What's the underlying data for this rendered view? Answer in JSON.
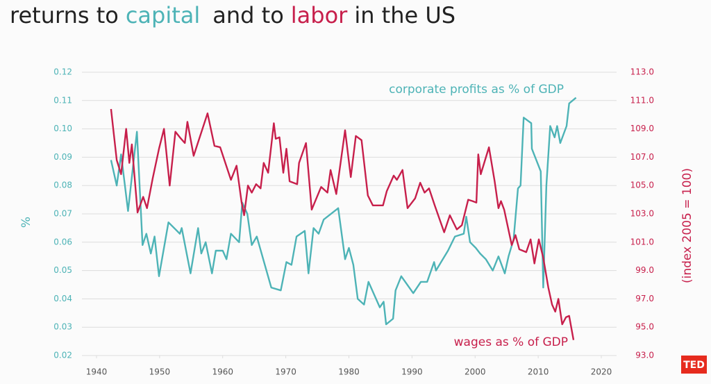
{
  "chart_data": {
    "type": "line",
    "title_parts": [
      "returns to",
      "capital",
      "and to",
      "labor",
      "in the US"
    ],
    "ylabel": "%",
    "y2label": "(index 2005 = 100)",
    "annotations": [
      "corporate profits as % of GDP",
      "wages as % of GDP"
    ],
    "logo": "TED",
    "xlim": [
      1937,
      2023
    ],
    "xticks": [
      1940,
      1950,
      1960,
      1970,
      1980,
      1990,
      2000,
      2010,
      2020
    ],
    "ylim": [
      0.02,
      0.12
    ],
    "yticks": [
      0.02,
      0.03,
      0.04,
      0.05,
      0.06,
      0.07,
      0.08,
      0.09,
      {
        "value": 0.1,
        "label": "0.10"
      },
      0.11,
      0.12
    ],
    "y2lim": [
      93,
      113
    ],
    "y2ticks": [
      {
        "value": 93,
        "label": "93.0"
      },
      {
        "value": 95,
        "label": "95.0"
      },
      {
        "value": 97,
        "label": "97.0"
      },
      {
        "value": 99,
        "label": "99.0"
      },
      {
        "value": 101,
        "label": "101.0"
      },
      {
        "value": 103,
        "label": "103.0"
      },
      {
        "value": 105,
        "label": "105.0"
      },
      {
        "value": 107,
        "label": "107.0"
      },
      {
        "value": 109,
        "label": "109.0"
      },
      {
        "value": 111,
        "label": "111.0"
      },
      {
        "value": 113,
        "label": "113.0"
      }
    ],
    "grid": true,
    "series": [
      {
        "name": "capital",
        "color": "#4db3b6",
        "x": [
          1942.3,
          1943.2,
          1943.9,
          1945.0,
          1946.4,
          1947.3,
          1947.9,
          1948.6,
          1949.2,
          1949.9,
          1951.4,
          1953.2,
          1953.5,
          1954.9,
          1956.1,
          1956.6,
          1957.3,
          1958.3,
          1958.9,
          1960.0,
          1960.6,
          1961.3,
          1962.6,
          1963.1,
          1963.9,
          1964.6,
          1965.4,
          1967.7,
          1969.2,
          1970.1,
          1970.9,
          1971.7,
          1973.0,
          1973.6,
          1974.4,
          1975.2,
          1976.0,
          1978.3,
          1979.4,
          1980.0,
          1980.7,
          1981.4,
          1982.4,
          1983.1,
          1984.9,
          1985.5,
          1985.9,
          1987.0,
          1987.4,
          1988.3,
          1990.2,
          1991.4,
          1992.4,
          1993.5,
          1993.8,
          1995.7,
          1996.8,
          1998.2,
          1998.6,
          1999.2,
          2000.1,
          2000.8,
          2001.7,
          2002.8,
          2003.7,
          2004.7,
          2005.3,
          2006.1,
          2006.8,
          2007.2,
          2007.7,
          2008.9,
          2009.0,
          2010.4,
          2010.8,
          2011.3,
          2011.9,
          2012.6,
          2013.0,
          2013.5,
          2014.5,
          2014.9,
          2016.0
        ],
        "values": [
          0.089,
          0.08,
          0.091,
          0.071,
          0.099,
          0.059,
          0.063,
          0.056,
          0.062,
          0.048,
          0.067,
          0.063,
          0.065,
          0.049,
          0.065,
          0.056,
          0.06,
          0.049,
          0.057,
          0.057,
          0.054,
          0.063,
          0.06,
          0.074,
          0.07,
          0.059,
          0.062,
          0.044,
          0.043,
          0.053,
          0.052,
          0.062,
          0.064,
          0.049,
          0.065,
          0.063,
          0.068,
          0.072,
          0.054,
          0.058,
          0.052,
          0.04,
          0.038,
          0.046,
          0.037,
          0.039,
          0.031,
          0.033,
          0.043,
          0.048,
          0.042,
          0.046,
          0.046,
          0.053,
          0.05,
          0.057,
          0.062,
          0.063,
          0.069,
          0.06,
          0.058,
          0.056,
          0.054,
          0.05,
          0.055,
          0.049,
          0.055,
          0.061,
          0.079,
          0.08,
          0.104,
          0.102,
          0.093,
          0.085,
          0.044,
          0.08,
          0.101,
          0.097,
          0.101,
          0.095,
          0.101,
          0.109,
          0.111
        ]
      },
      {
        "name": "labor",
        "color": "#c71f4b",
        "axis": "y2",
        "x": [
          1942.3,
          1943.2,
          1943.9,
          1944.7,
          1945.2,
          1945.6,
          1946.5,
          1947.4,
          1948.0,
          1948.9,
          1949.9,
          1950.7,
          1951.6,
          1952.5,
          1953.2,
          1954.0,
          1954.4,
          1955.4,
          1957.6,
          1958.7,
          1959.6,
          1961.3,
          1962.2,
          1963.0,
          1963.4,
          1964.0,
          1964.6,
          1965.3,
          1966.0,
          1966.5,
          1967.2,
          1968.1,
          1968.4,
          1969.0,
          1969.6,
          1970.1,
          1970.6,
          1971.8,
          1972.1,
          1973.2,
          1974.1,
          1975.6,
          1976.6,
          1977.1,
          1978.0,
          1979.4,
          1980.3,
          1981.1,
          1982.0,
          1983.0,
          1983.8,
          1985.4,
          1986.0,
          1987.1,
          1987.6,
          1988.5,
          1989.3,
          1990.5,
          1991.3,
          1992.0,
          1992.7,
          1993.6,
          1995.1,
          1996.0,
          1997.1,
          1997.9,
          1998.9,
          1999.6,
          2000.2,
          2000.5,
          2000.9,
          2002.2,
          2003.1,
          2003.7,
          2004.1,
          2004.6,
          2005.8,
          2006.4,
          2007.0,
          2008.1,
          2008.8,
          2009.4,
          2010.1,
          2010.8,
          2011.6,
          2012.2,
          2012.7,
          2013.2,
          2013.8,
          2014.4,
          2014.9,
          2015.6
        ],
        "values": [
          110.4,
          106.8,
          105.8,
          109.0,
          106.6,
          107.9,
          103.1,
          104.2,
          103.4,
          105.5,
          107.6,
          109.0,
          105.0,
          108.8,
          108.4,
          108.0,
          109.5,
          107.1,
          110.1,
          107.8,
          107.7,
          105.4,
          106.4,
          103.8,
          102.9,
          105.0,
          104.5,
          105.1,
          104.8,
          106.6,
          105.9,
          109.4,
          108.3,
          108.4,
          105.9,
          107.6,
          105.3,
          105.1,
          106.6,
          108.0,
          103.3,
          104.9,
          104.5,
          106.1,
          104.4,
          108.9,
          105.6,
          108.5,
          108.2,
          104.3,
          103.6,
          103.6,
          104.6,
          105.7,
          105.4,
          106.1,
          103.4,
          104.1,
          105.2,
          104.5,
          104.8,
          103.6,
          101.7,
          102.9,
          101.9,
          102.2,
          104.0,
          103.9,
          103.8,
          107.2,
          105.8,
          107.7,
          105.3,
          103.4,
          103.9,
          103.3,
          100.8,
          101.5,
          100.5,
          100.3,
          101.2,
          99.5,
          101.2,
          99.9,
          97.8,
          96.6,
          96.1,
          97.0,
          95.2,
          95.7,
          95.8,
          94.1
        ]
      }
    ]
  }
}
